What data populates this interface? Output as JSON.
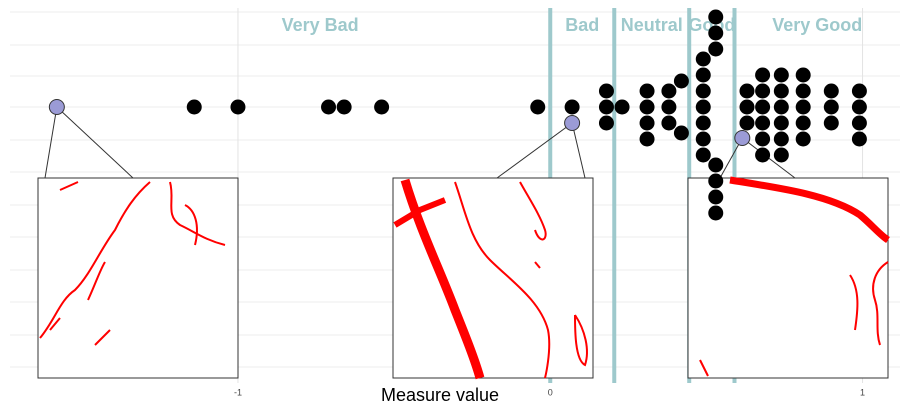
{
  "chart_data": {
    "type": "beeswarm",
    "x_label": "Measure value",
    "xlim": [
      -1.73,
      1.12
    ],
    "xticks": [
      -1,
      0,
      1
    ],
    "grid": true,
    "zones": [
      "Very Bad",
      "Bad",
      "Neutral",
      "Good",
      "Very Good"
    ],
    "thresholds": [
      0,
      0.205,
      0.445,
      0.59
    ],
    "zone_color": "#9ec9cc",
    "series": [
      {
        "color": "#000000",
        "values": [
          -1.14,
          -1.0,
          -0.71,
          -0.66,
          -0.54,
          -0.04,
          0.07,
          0.18,
          0.18,
          0.18,
          0.23,
          0.31,
          0.31,
          0.31,
          0.31,
          0.38,
          0.38,
          0.38,
          0.42,
          0.42,
          0.49,
          0.49,
          0.49,
          0.49,
          0.49,
          0.49,
          0.49,
          0.53,
          0.53,
          0.53,
          0.53,
          0.53,
          0.53,
          0.53,
          0.63,
          0.63,
          0.63,
          0.68,
          0.68,
          0.68,
          0.68,
          0.68,
          0.68,
          0.74,
          0.74,
          0.74,
          0.74,
          0.74,
          0.74,
          0.81,
          0.81,
          0.81,
          0.81,
          0.81,
          0.9,
          0.9,
          0.9,
          0.99,
          0.99,
          0.99,
          0.99
        ]
      },
      {
        "color": "#9b9bd6",
        "values": [
          -1.58,
          0.07,
          0.615
        ]
      }
    ]
  }
}
